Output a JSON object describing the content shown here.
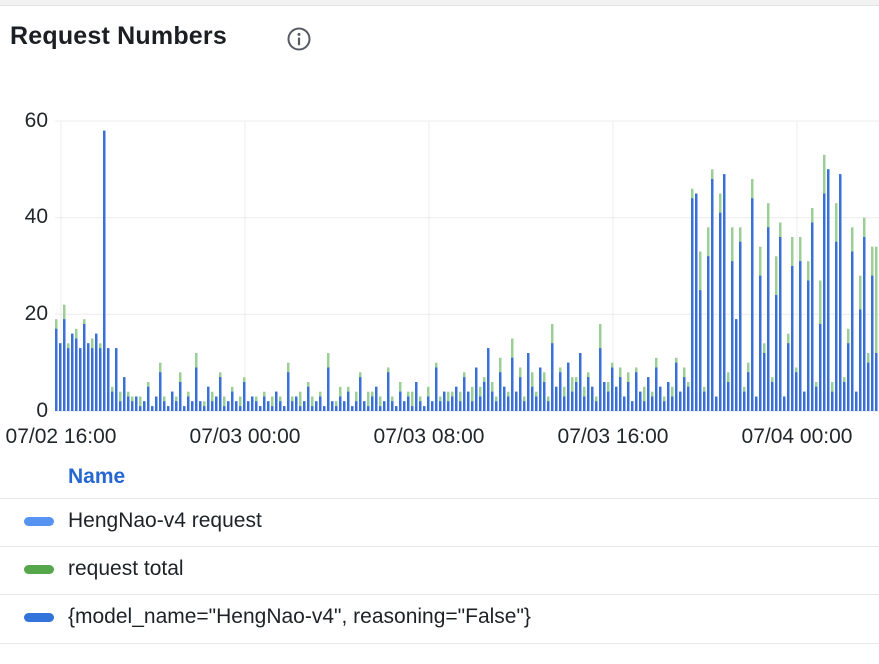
{
  "header": {
    "title": "Request Numbers"
  },
  "legend": {
    "header": "Name"
  },
  "colors": {
    "accent_link_blue": "#2767d2",
    "bar_blue": "#3274d9",
    "bar_light_blue": "#5794f2",
    "bar_green_fill": "#9ccf95",
    "legend_green": "#56a64b"
  },
  "chart_data": {
    "type": "bar",
    "title": "Request Numbers",
    "xlabel": "",
    "ylabel": "",
    "ylim": [
      0,
      60
    ],
    "grid": true,
    "legend_position": "bottom-table",
    "y_ticks": [
      "0",
      "20",
      "40",
      "60"
    ],
    "x_ticks": [
      "07/02 16:00",
      "07/03 00:00",
      "07/03 08:00",
      "07/03 16:00",
      "07/04 00:00"
    ],
    "series": [
      {
        "name": "HengNao-v4 request",
        "color": "#5794f2",
        "bar_color": "#5794f2",
        "values_key": "request"
      },
      {
        "name": "request total",
        "color": "#56a64b",
        "bar_color": "#9ccf95",
        "values_key": "total"
      },
      {
        "name": "{model_name=\"HengNao-v4\", reasoning=\"False\"}",
        "color": "#3274d9",
        "bar_color": "#3a70d6",
        "values_key": "request"
      }
    ],
    "render_order": [
      1,
      0,
      2
    ],
    "values": {
      "request": [
        17,
        14,
        19,
        13,
        16,
        15,
        13,
        18,
        14,
        13,
        16,
        13,
        58,
        13,
        4,
        13,
        2,
        7,
        3,
        2,
        3,
        1,
        2,
        5,
        1,
        3,
        8,
        2,
        1,
        4,
        2,
        6,
        1,
        3,
        2,
        9,
        2,
        1,
        5,
        2,
        3,
        7,
        1,
        2,
        4,
        2,
        1,
        6,
        2,
        3,
        2,
        1,
        3,
        2,
        1,
        4,
        2,
        1,
        8,
        2,
        3,
        1,
        2,
        5,
        1,
        2,
        3,
        1,
        9,
        2,
        1,
        3,
        2,
        4,
        1,
        2,
        7,
        2,
        1,
        3,
        5,
        1,
        2,
        8,
        2,
        1,
        4,
        2,
        3,
        1,
        6,
        2,
        1,
        3,
        2,
        9,
        2,
        4,
        2,
        3,
        5,
        2,
        7,
        4,
        2,
        9,
        3,
        6,
        13,
        4,
        2,
        8,
        5,
        3,
        11,
        4,
        7,
        2,
        12,
        5,
        3,
        9,
        6,
        2,
        14,
        5,
        8,
        3,
        10,
        4,
        6,
        12,
        3,
        7,
        5,
        2,
        13,
        6,
        4,
        9,
        5,
        7,
        3,
        6,
        2,
        8,
        4,
        2,
        7,
        3,
        9,
        5,
        2,
        6,
        3,
        10,
        4,
        7,
        5,
        44,
        45,
        25,
        4,
        32,
        48,
        3,
        41,
        49,
        6,
        31,
        19,
        35,
        4,
        8,
        44,
        3,
        28,
        12,
        38,
        6,
        24,
        36,
        3,
        14,
        30,
        8,
        31,
        4,
        27,
        39,
        5,
        18,
        45,
        50,
        4,
        35,
        49,
        6,
        14,
        33,
        4,
        21,
        36,
        10,
        28,
        12
      ],
      "total": [
        19,
        14,
        22,
        14,
        16,
        17,
        13,
        19,
        14,
        15,
        16,
        14,
        58,
        13,
        5,
        13,
        4,
        7,
        4,
        3,
        3,
        3,
        2,
        6,
        1,
        3,
        10,
        3,
        1,
        4,
        3,
        8,
        1,
        4,
        2,
        12,
        2,
        2,
        5,
        4,
        3,
        8,
        3,
        2,
        5,
        2,
        3,
        7,
        2,
        3,
        3,
        1,
        4,
        2,
        3,
        4,
        3,
        1,
        10,
        3,
        3,
        4,
        2,
        6,
        3,
        2,
        4,
        1,
        12,
        2,
        2,
        5,
        2,
        5,
        1,
        4,
        8,
        2,
        4,
        4,
        5,
        3,
        2,
        9,
        3,
        1,
        6,
        2,
        4,
        4,
        6,
        3,
        1,
        5,
        2,
        10,
        3,
        4,
        4,
        4,
        5,
        4,
        8,
        4,
        5,
        9,
        5,
        7,
        13,
        6,
        3,
        11,
        5,
        4,
        15,
        4,
        9,
        3,
        12,
        8,
        4,
        9,
        8,
        3,
        18,
        5,
        9,
        5,
        10,
        7,
        7,
        12,
        5,
        8,
        5,
        3,
        18,
        6,
        6,
        10,
        5,
        9,
        3,
        8,
        2,
        9,
        4,
        5,
        7,
        4,
        11,
        5,
        3,
        6,
        5,
        11,
        4,
        9,
        6,
        46,
        45,
        33,
        5,
        38,
        50,
        3,
        45,
        49,
        8,
        38,
        19,
        38,
        5,
        10,
        48,
        3,
        34,
        14,
        43,
        7,
        32,
        39,
        3,
        16,
        36,
        9,
        36,
        4,
        31,
        42,
        6,
        27,
        53,
        50,
        6,
        43,
        49,
        7,
        17,
        38,
        4,
        28,
        40,
        12,
        34,
        34
      ]
    }
  }
}
